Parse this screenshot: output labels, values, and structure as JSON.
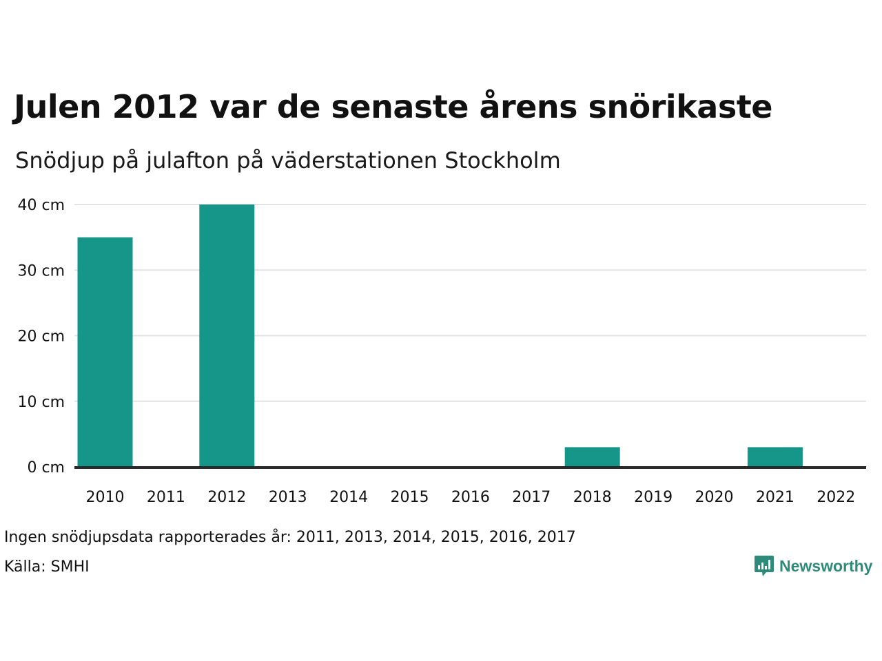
{
  "title": "Julen 2012 var de senaste årens snörikaste",
  "subtitle": "Snödjup på julafton på väderstationen Stockholm",
  "note": "Ingen snödjupsdata rapporterades år: 2011, 2013, 2014, 2015, 2016, 2017",
  "source": "Källa: SMHI",
  "brand": {
    "name": "Newsworthy",
    "icon": "newsworthy-logo-icon"
  },
  "colors": {
    "bar": "#169688",
    "grid": "#e3e3e3",
    "baseline": "#2b2b2b",
    "brand": "#2e8b7a"
  },
  "chart_data": {
    "type": "bar",
    "title": "Julen 2012 var de senaste årens snörikaste",
    "subtitle": "Snödjup på julafton på väderstationen Stockholm",
    "categories": [
      "2010",
      "2011",
      "2012",
      "2013",
      "2014",
      "2015",
      "2016",
      "2017",
      "2018",
      "2019",
      "2020",
      "2021",
      "2022"
    ],
    "values": [
      35,
      null,
      40,
      null,
      null,
      null,
      null,
      null,
      3,
      0,
      0,
      3,
      0
    ],
    "ylim": [
      0,
      40
    ],
    "yticks": [
      0,
      10,
      20,
      30,
      40
    ],
    "ytick_labels": [
      "0 cm",
      "10 cm",
      "20 cm",
      "30 cm",
      "40 cm"
    ],
    "grid": true,
    "legend": "none",
    "xlabel": "",
    "ylabel": ""
  }
}
